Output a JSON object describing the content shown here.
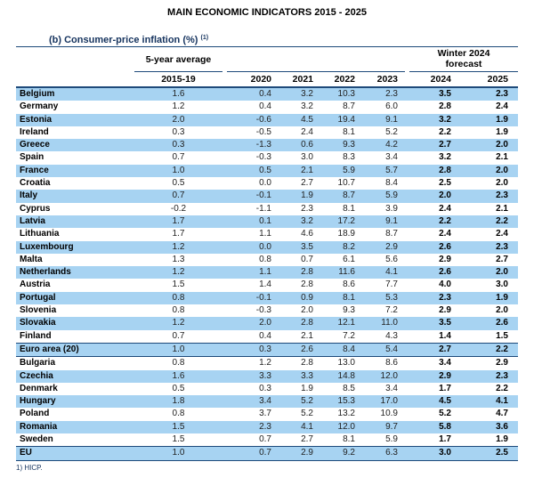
{
  "title": "MAIN ECONOMIC INDICATORS 2015 - 2025",
  "section": {
    "label": "(b) Consumer-price inflation (%)",
    "note_ref": "(1)"
  },
  "footnote": "1) HICP.",
  "colors": {
    "row_highlight": "#a7d3f2",
    "rule_navy": "#1e4a7a"
  },
  "table": {
    "group_headers": {
      "avg": "5-year average",
      "forecast": "Winter 2024 forecast"
    },
    "year_headers": [
      "2015-19",
      "2020",
      "2021",
      "2022",
      "2023",
      "2024",
      "2025"
    ],
    "rows": [
      {
        "country": "Belgium",
        "values": [
          "1.6",
          "0.4",
          "3.2",
          "10.3",
          "2.3",
          "3.5",
          "2.3"
        ]
      },
      {
        "country": "Germany",
        "values": [
          "1.2",
          "0.4",
          "3.2",
          "8.7",
          "6.0",
          "2.8",
          "2.4"
        ]
      },
      {
        "country": "Estonia",
        "values": [
          "2.0",
          "-0.6",
          "4.5",
          "19.4",
          "9.1",
          "3.2",
          "1.9"
        ]
      },
      {
        "country": "Ireland",
        "values": [
          "0.3",
          "-0.5",
          "2.4",
          "8.1",
          "5.2",
          "2.2",
          "1.9"
        ]
      },
      {
        "country": "Greece",
        "values": [
          "0.3",
          "-1.3",
          "0.6",
          "9.3",
          "4.2",
          "2.7",
          "2.0"
        ]
      },
      {
        "country": "Spain",
        "values": [
          "0.7",
          "-0.3",
          "3.0",
          "8.3",
          "3.4",
          "3.2",
          "2.1"
        ]
      },
      {
        "country": "France",
        "values": [
          "1.0",
          "0.5",
          "2.1",
          "5.9",
          "5.7",
          "2.8",
          "2.0"
        ]
      },
      {
        "country": "Croatia",
        "values": [
          "0.5",
          "0.0",
          "2.7",
          "10.7",
          "8.4",
          "2.5",
          "2.0"
        ]
      },
      {
        "country": "Italy",
        "values": [
          "0.7",
          "-0.1",
          "1.9",
          "8.7",
          "5.9",
          "2.0",
          "2.3"
        ]
      },
      {
        "country": "Cyprus",
        "values": [
          "-0.2",
          "-1.1",
          "2.3",
          "8.1",
          "3.9",
          "2.4",
          "2.1"
        ]
      },
      {
        "country": "Latvia",
        "values": [
          "1.7",
          "0.1",
          "3.2",
          "17.2",
          "9.1",
          "2.2",
          "2.2"
        ]
      },
      {
        "country": "Lithuania",
        "values": [
          "1.7",
          "1.1",
          "4.6",
          "18.9",
          "8.7",
          "2.4",
          "2.4"
        ]
      },
      {
        "country": "Luxembourg",
        "values": [
          "1.2",
          "0.0",
          "3.5",
          "8.2",
          "2.9",
          "2.6",
          "2.3"
        ]
      },
      {
        "country": "Malta",
        "values": [
          "1.3",
          "0.8",
          "0.7",
          "6.1",
          "5.6",
          "2.9",
          "2.7"
        ]
      },
      {
        "country": "Netherlands",
        "values": [
          "1.2",
          "1.1",
          "2.8",
          "11.6",
          "4.1",
          "2.6",
          "2.0"
        ]
      },
      {
        "country": "Austria",
        "values": [
          "1.5",
          "1.4",
          "2.8",
          "8.6",
          "7.7",
          "4.0",
          "3.0"
        ]
      },
      {
        "country": "Portugal",
        "values": [
          "0.8",
          "-0.1",
          "0.9",
          "8.1",
          "5.3",
          "2.3",
          "1.9"
        ]
      },
      {
        "country": "Slovenia",
        "values": [
          "0.8",
          "-0.3",
          "2.0",
          "9.3",
          "7.2",
          "2.9",
          "2.0"
        ]
      },
      {
        "country": "Slovakia",
        "values": [
          "1.2",
          "2.0",
          "2.8",
          "12.1",
          "11.0",
          "3.5",
          "2.6"
        ]
      },
      {
        "country": "Finland",
        "values": [
          "0.7",
          "0.4",
          "2.1",
          "7.2",
          "4.3",
          "1.4",
          "1.5"
        ]
      },
      {
        "country": "Euro area (20)",
        "values": [
          "1.0",
          "0.3",
          "2.6",
          "8.4",
          "5.4",
          "2.7",
          "2.2"
        ],
        "aggregate": true
      },
      {
        "country": "Bulgaria",
        "values": [
          "0.8",
          "1.2",
          "2.8",
          "13.0",
          "8.6",
          "3.4",
          "2.9"
        ]
      },
      {
        "country": "Czechia",
        "values": [
          "1.6",
          "3.3",
          "3.3",
          "14.8",
          "12.0",
          "2.9",
          "2.3"
        ]
      },
      {
        "country": "Denmark",
        "values": [
          "0.5",
          "0.3",
          "1.9",
          "8.5",
          "3.4",
          "1.7",
          "2.2"
        ]
      },
      {
        "country": "Hungary",
        "values": [
          "1.8",
          "3.4",
          "5.2",
          "15.3",
          "17.0",
          "4.5",
          "4.1"
        ]
      },
      {
        "country": "Poland",
        "values": [
          "0.8",
          "3.7",
          "5.2",
          "13.2",
          "10.9",
          "5.2",
          "4.7"
        ]
      },
      {
        "country": "Romania",
        "values": [
          "1.5",
          "2.3",
          "4.1",
          "12.0",
          "9.7",
          "5.8",
          "3.6"
        ]
      },
      {
        "country": "Sweden",
        "values": [
          "1.5",
          "0.7",
          "2.7",
          "8.1",
          "5.9",
          "1.7",
          "1.9"
        ]
      },
      {
        "country": "EU",
        "values": [
          "1.0",
          "0.7",
          "2.9",
          "9.2",
          "6.3",
          "3.0",
          "2.5"
        ],
        "aggregate": true
      }
    ]
  }
}
